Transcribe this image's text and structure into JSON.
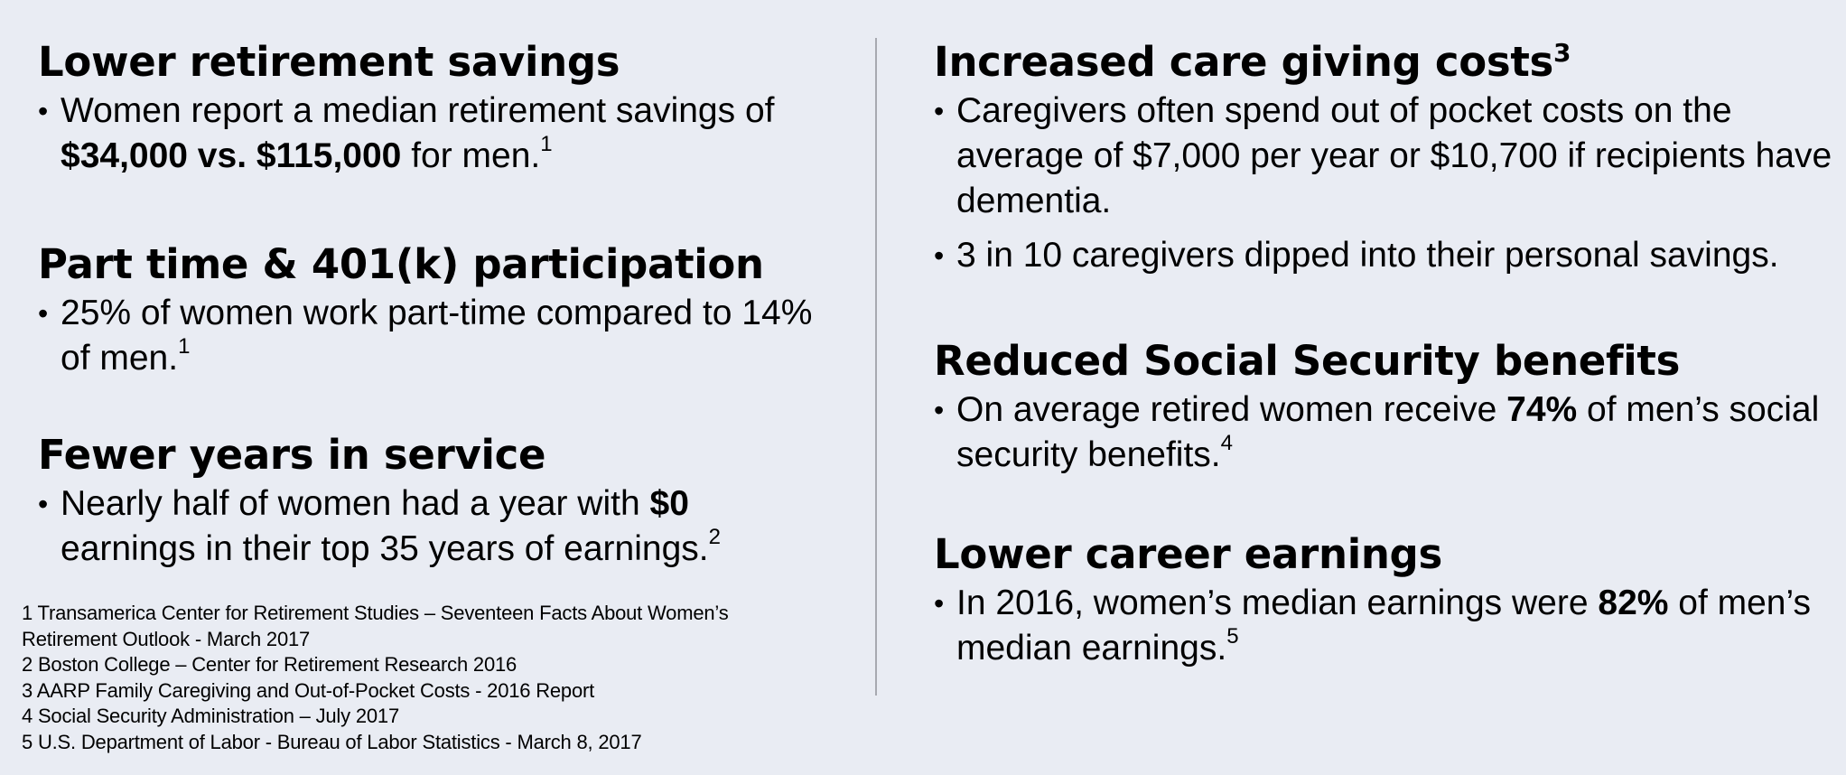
{
  "left_column": {
    "sections": [
      {
        "heading": "Lower retirement savings",
        "bullets": [
          {
            "parts": [
              {
                "text": " Women report a median retirement savings of ",
                "bold": false
              },
              {
                "text": "$34,000 vs. $115,000",
                "bold": true
              },
              {
                "text": " for men.",
                "bold": false
              }
            ],
            "footnote_ref": "1"
          }
        ]
      },
      {
        "heading": "Part time & 401(k) participation",
        "bullets": [
          {
            "parts": [
              {
                "text": " 25% of women work part-time compared to 14% of men.",
                "bold": false
              }
            ],
            "footnote_ref": "1"
          }
        ]
      },
      {
        "heading": "Fewer years in service",
        "bullets": [
          {
            "parts": [
              {
                "text": "Nearly half of women had a year with ",
                "bold": false
              },
              {
                "text": "$0",
                "bold": true
              },
              {
                "text": " earnings in their top 35 years of earnings.",
                "bold": false
              }
            ],
            "footnote_ref": "2"
          }
        ]
      }
    ]
  },
  "right_column": {
    "sections": [
      {
        "heading": "Increased care giving costs",
        "heading_ref": "3",
        "bullets": [
          {
            "parts": [
              {
                "text": " Caregivers often spend out of pocket costs on the average of $7,000 per year or $10,700 if recipients have dementia.",
                "bold": false
              }
            ],
            "footnote_ref": ""
          },
          {
            "parts": [
              {
                "text": "3 in 10 caregivers dipped into their personal savings.",
                "bold": false
              }
            ],
            "footnote_ref": ""
          }
        ]
      },
      {
        "heading": "Reduced Social Security benefits",
        "bullets": [
          {
            "parts": [
              {
                "text": "On average retired women receive ",
                "bold": false
              },
              {
                "text": "74%",
                "bold": true
              },
              {
                "text": " of men’s social security benefits.",
                "bold": false
              }
            ],
            "footnote_ref": "4"
          }
        ]
      },
      {
        "heading": "Lower career earnings",
        "bullets": [
          {
            "parts": [
              {
                "text": "In 2016, women’s median earnings were ",
                "bold": false
              },
              {
                "text": "82%",
                "bold": true
              },
              {
                "text": " of men’s median earnings.",
                "bold": false
              }
            ],
            "footnote_ref": "5"
          }
        ]
      }
    ]
  },
  "bullet_symbol": "•",
  "footnotes": [
    "1 Transamerica Center for Retirement Studies – Seventeen Facts About Women’s",
    "Retirement Outlook - March 2017",
    "2 Boston College – Center for Retirement Research 2016",
    "3 AARP Family Caregiving and Out-of-Pocket Costs - 2016 Report",
    "4 Social Security Administration – July 2017",
    "5  U.S. Department of Labor  - Bureau of Labor Statistics  - March 8, 2017"
  ],
  "colors": {
    "background": "#e9ecf3",
    "text": "#000000",
    "divider": "#a7a9b0"
  }
}
